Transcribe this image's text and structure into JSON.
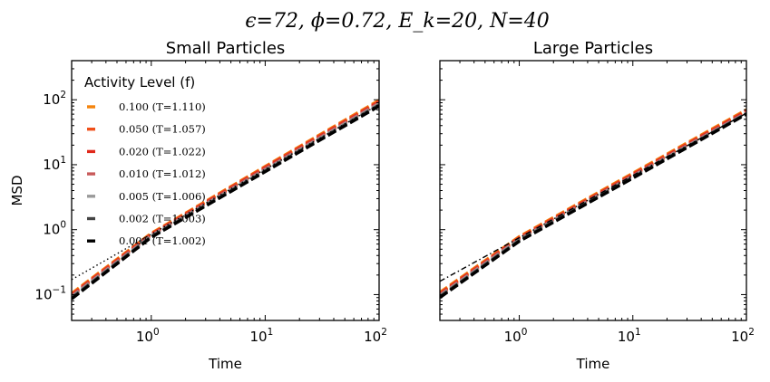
{
  "figure": {
    "suptitle": "ϵ=72, ϕ=0.72, E_k=20, N=40"
  },
  "chart_data": [
    {
      "type": "line",
      "title": "Small Particles",
      "xlabel": "Time",
      "ylabel": "MSD",
      "xscale": "log",
      "yscale": "log",
      "xlim": [
        0.2,
        100
      ],
      "ylim": [
        0.04,
        400
      ],
      "xticks": [
        {
          "base": "10",
          "exp": "0",
          "value": 1
        },
        {
          "base": "10",
          "exp": "1",
          "value": 10
        },
        {
          "base": "10",
          "exp": "2",
          "value": 100
        }
      ],
      "yticks": [
        {
          "base": "10",
          "exp": "−1",
          "value": 0.1
        },
        {
          "base": "10",
          "exp": "0",
          "value": 1
        },
        {
          "base": "10",
          "exp": "1",
          "value": 10
        },
        {
          "base": "10",
          "exp": "2",
          "value": 100
        }
      ],
      "legend": {
        "title": "Activity Level (f)",
        "placement": "upper-left",
        "entries": [
          {
            "label": "0.100 (T=1.110)",
            "color": "#f4840c"
          },
          {
            "label": "0.050 (T=1.057)",
            "color": "#f0501a"
          },
          {
            "label": "0.020 (T=1.022)",
            "color": "#e0281a"
          },
          {
            "label": "0.010 (T=1.012)",
            "color": "#c85a5a"
          },
          {
            "label": "0.005 (T=1.006)",
            "color": "#9a9a9a"
          },
          {
            "label": "0.002 (T=1.003)",
            "color": "#444444"
          },
          {
            "label": "0.001 (T=1.002)",
            "color": "#000000"
          }
        ]
      },
      "series": [
        {
          "style": "dashed",
          "color": "#f4840c",
          "points": [
            [
              0.2,
              0.104
            ],
            [
              1,
              0.88
            ],
            [
              10,
              9.4
            ],
            [
              100,
              98
            ]
          ]
        },
        {
          "style": "dashed",
          "color": "#f0501a",
          "points": [
            [
              0.2,
              0.101
            ],
            [
              1,
              0.86
            ],
            [
              10,
              9.2
            ],
            [
              100,
              95
            ]
          ]
        },
        {
          "style": "dashed",
          "color": "#e0281a",
          "points": [
            [
              0.2,
              0.098
            ],
            [
              1,
              0.84
            ],
            [
              10,
              8.9
            ],
            [
              100,
              92
            ]
          ]
        },
        {
          "style": "dashed",
          "color": "#c85a5a",
          "points": [
            [
              0.2,
              0.095
            ],
            [
              1,
              0.82
            ],
            [
              10,
              8.6
            ],
            [
              100,
              89
            ]
          ]
        },
        {
          "style": "dashed",
          "color": "#9a9a9a",
          "points": [
            [
              0.2,
              0.092
            ],
            [
              1,
              0.8
            ],
            [
              10,
              8.3
            ],
            [
              100,
              86
            ]
          ]
        },
        {
          "style": "dashed",
          "color": "#444444",
          "points": [
            [
              0.2,
              0.089
            ],
            [
              1,
              0.78
            ],
            [
              10,
              8.0
            ],
            [
              100,
              83
            ]
          ]
        },
        {
          "style": "dashed",
          "color": "#000000",
          "points": [
            [
              0.2,
              0.086
            ],
            [
              1,
              0.76
            ],
            [
              10,
              7.8
            ],
            [
              100,
              80
            ]
          ]
        },
        {
          "style": "dotted",
          "color": "#000000",
          "points": [
            [
              0.2,
              0.17
            ],
            [
              100,
              85
            ]
          ]
        }
      ]
    },
    {
      "type": "line",
      "title": "Large Particles",
      "xlabel": "Time",
      "ylabel": "",
      "xscale": "log",
      "yscale": "log",
      "xlim": [
        0.2,
        100
      ],
      "ylim": [
        0.04,
        400
      ],
      "xticks": [
        {
          "base": "10",
          "exp": "0",
          "value": 1
        },
        {
          "base": "10",
          "exp": "1",
          "value": 10
        },
        {
          "base": "10",
          "exp": "2",
          "value": 100
        }
      ],
      "yticks": [],
      "series": [
        {
          "style": "dashed",
          "color": "#f4840c",
          "points": [
            [
              0.2,
              0.108
            ],
            [
              1,
              0.78
            ],
            [
              10,
              7.4
            ],
            [
              100,
              70
            ]
          ]
        },
        {
          "style": "dashed",
          "color": "#f0501a",
          "points": [
            [
              0.2,
              0.105
            ],
            [
              1,
              0.76
            ],
            [
              10,
              7.2
            ],
            [
              100,
              68
            ]
          ]
        },
        {
          "style": "dashed",
          "color": "#e0281a",
          "points": [
            [
              0.2,
              0.102
            ],
            [
              1,
              0.74
            ],
            [
              10,
              7.0
            ],
            [
              100,
              66
            ]
          ]
        },
        {
          "style": "dashed",
          "color": "#c85a5a",
          "points": [
            [
              0.2,
              0.099
            ],
            [
              1,
              0.72
            ],
            [
              10,
              6.8
            ],
            [
              100,
              64
            ]
          ]
        },
        {
          "style": "dashed",
          "color": "#9a9a9a",
          "points": [
            [
              0.2,
              0.096
            ],
            [
              1,
              0.7
            ],
            [
              10,
              6.6
            ],
            [
              100,
              62
            ]
          ]
        },
        {
          "style": "dashed",
          "color": "#444444",
          "points": [
            [
              0.2,
              0.093
            ],
            [
              1,
              0.68
            ],
            [
              10,
              6.4
            ],
            [
              100,
              61
            ]
          ]
        },
        {
          "style": "dashed",
          "color": "#000000",
          "points": [
            [
              0.2,
              0.09
            ],
            [
              1,
              0.66
            ],
            [
              10,
              6.2
            ],
            [
              100,
              60
            ]
          ]
        },
        {
          "style": "dashdot",
          "color": "#000000",
          "points": [
            [
              0.2,
              0.16
            ],
            [
              100,
              62
            ]
          ]
        }
      ]
    }
  ]
}
